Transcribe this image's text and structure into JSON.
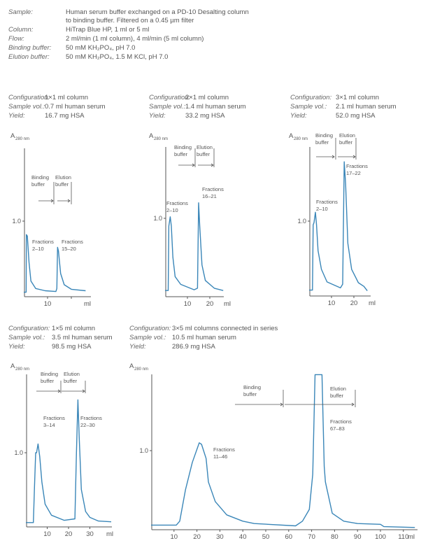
{
  "conditions": [
    {
      "label": "Sample:",
      "value": "Human serum buffer exchanged on a PD-10 Desalting column",
      "value2": "to binding buffer. Filtered on a 0.45 µm filter"
    },
    {
      "label": "Column:",
      "value": "HiTrap Blue HP, 1 ml or 5 ml"
    },
    {
      "label": "Flow:",
      "value": "2 ml/min (1 ml column), 4 ml/min (5 ml column)"
    },
    {
      "label": "Binding buffer:",
      "value": "50 mM KH₂PO₄, pH 7.0"
    },
    {
      "label": "Elution buffer:",
      "value": "50 mM KH₂PO₄, 1.5 M KCl, pH 7.0"
    }
  ],
  "colors": {
    "trace": "#3a86b8",
    "axis": "#555555"
  },
  "chart_data": [
    {
      "type": "line",
      "configuration": "1×1 ml column",
      "sample_vol": "0.7 ml human serum",
      "yield": "16.7 mg HSA",
      "labels": {
        "config": "Configuration:",
        "sample": "Sample vol.:",
        "yield": "Yield:"
      },
      "ylabel": "A",
      "ylabel_sub": "280 nm",
      "xlabel": "ml",
      "yticks": [
        1.0
      ],
      "ytick_labels": [
        "1.0"
      ],
      "xticks": [
        10,
        20
      ],
      "xtick_labels": [
        "10",
        ""
      ],
      "annotations": {
        "binding": [
          "Binding",
          "buffer"
        ],
        "elution": [
          "Elution",
          "buffer"
        ],
        "peak1": [
          "Fractions",
          "2–10"
        ],
        "peak2": [
          "Fractions",
          "15–20"
        ]
      },
      "points": [
        [
          0,
          0.05
        ],
        [
          1.0,
          0.05
        ],
        [
          1.1,
          0.82
        ],
        [
          1.5,
          0.8
        ],
        [
          2.2,
          0.45
        ],
        [
          3,
          0.2
        ],
        [
          5,
          0.1
        ],
        [
          9,
          0.07
        ],
        [
          13.5,
          0.06
        ],
        [
          13.9,
          0.1
        ],
        [
          14.2,
          0.65
        ],
        [
          14.6,
          0.6
        ],
        [
          15.5,
          0.3
        ],
        [
          17,
          0.15
        ],
        [
          20,
          0.09
        ],
        [
          26,
          0.07
        ]
      ]
    },
    {
      "type": "line",
      "configuration": "2×1 ml column",
      "sample_vol": "1.4 ml human serum",
      "yield": "33.2 mg HSA",
      "labels": {
        "config": "Configuration:",
        "sample": "Sample vol.:",
        "yield": "Yield:"
      },
      "ylabel": "A",
      "ylabel_sub": "280 nm",
      "xlabel": "ml",
      "yticks": [
        1.0
      ],
      "ytick_labels": [
        "1.0"
      ],
      "xticks": [
        10,
        20
      ],
      "xtick_labels": [
        "10",
        "20"
      ],
      "annotations": {
        "binding": [
          "Binding",
          "buffer"
        ],
        "elution": [
          "Elution",
          "buffer"
        ],
        "peak1": [
          "Fractions",
          "2–10"
        ],
        "peak2": [
          "Fractions",
          "16–21"
        ]
      },
      "points": [
        [
          0,
          0.07
        ],
        [
          1.4,
          0.07
        ],
        [
          1.7,
          0.9
        ],
        [
          2.3,
          1.02
        ],
        [
          2.8,
          0.9
        ],
        [
          3.5,
          0.5
        ],
        [
          4.5,
          0.25
        ],
        [
          7,
          0.15
        ],
        [
          13,
          0.08
        ],
        [
          14.5,
          0.1
        ],
        [
          15,
          1.2
        ],
        [
          15.5,
          0.9
        ],
        [
          16.5,
          0.4
        ],
        [
          18,
          0.2
        ],
        [
          22,
          0.1
        ],
        [
          26,
          0.07
        ]
      ]
    },
    {
      "type": "line",
      "configuration": "3×1 ml column",
      "sample_vol": "2.1 ml human serum",
      "yield": "52.0 mg HSA",
      "labels": {
        "config": "Configuration:",
        "sample": "Sample vol.:",
        "yield": "Yield:"
      },
      "ylabel": "A",
      "ylabel_sub": "280 nm",
      "xlabel": "ml",
      "yticks": [
        1.0
      ],
      "ytick_labels": [
        "1.0"
      ],
      "xticks": [
        10,
        20
      ],
      "xtick_labels": [
        "10",
        "20"
      ],
      "annotations": {
        "binding": [
          "Binding",
          "buffer"
        ],
        "elution": [
          "Elution",
          "buffer"
        ],
        "peak1": [
          "Fractions",
          "2–10"
        ],
        "peak2": [
          "Fractions",
          "17–22"
        ]
      },
      "points": [
        [
          0,
          0.07
        ],
        [
          1.5,
          0.07
        ],
        [
          1.8,
          0.95
        ],
        [
          2.2,
          0.98
        ],
        [
          2.8,
          1.12
        ],
        [
          3.3,
          0.95
        ],
        [
          4,
          0.6
        ],
        [
          5.5,
          0.35
        ],
        [
          8,
          0.18
        ],
        [
          14,
          0.1
        ],
        [
          15,
          0.15
        ],
        [
          15.7,
          1.8
        ],
        [
          16.3,
          1.5
        ],
        [
          17.3,
          0.7
        ],
        [
          19,
          0.35
        ],
        [
          22,
          0.17
        ],
        [
          24.5,
          0.12
        ],
        [
          26,
          0.06
        ]
      ]
    },
    {
      "type": "line",
      "configuration": "1×5 ml column",
      "sample_vol": "3.5 ml human serum",
      "yield": "98.5 mg HSA",
      "labels": {
        "config": "Configuration:",
        "sample": "Sample vol.:",
        "yield": "Yield:"
      },
      "ylabel": "A",
      "ylabel_sub": "280 nm",
      "xlabel": "ml",
      "yticks": [
        1.0
      ],
      "ytick_labels": [
        "1.0"
      ],
      "xticks": [
        10,
        20,
        30
      ],
      "xtick_labels": [
        "10",
        "20",
        "30"
      ],
      "annotations": {
        "binding": [
          "Binding",
          "buffer"
        ],
        "elution": [
          "Elution",
          "buffer"
        ],
        "peak1": [
          "Fractions",
          "3–14"
        ],
        "peak2": [
          "Fractions",
          "22–30"
        ]
      },
      "points": [
        [
          0,
          0.05
        ],
        [
          3.5,
          0.05
        ],
        [
          4,
          0.5
        ],
        [
          4.6,
          1.0
        ],
        [
          5,
          1.0
        ],
        [
          5.7,
          1.12
        ],
        [
          6.5,
          0.95
        ],
        [
          7.5,
          0.6
        ],
        [
          9,
          0.3
        ],
        [
          12,
          0.15
        ],
        [
          18,
          0.08
        ],
        [
          23,
          0.1
        ],
        [
          23.7,
          1.0
        ],
        [
          24.4,
          1.72
        ],
        [
          25,
          1.2
        ],
        [
          26,
          0.5
        ],
        [
          28,
          0.2
        ],
        [
          30,
          0.12
        ],
        [
          34,
          0.07
        ],
        [
          40,
          0.06
        ]
      ]
    },
    {
      "type": "line",
      "configuration": "3×5 ml columns connected in series",
      "sample_vol": "10.5 ml human serum",
      "yield": "286.9 mg HSA",
      "labels": {
        "config": "Configuration:",
        "sample": "Sample vol.:",
        "yield": "Yield:"
      },
      "ylabel": "A",
      "ylabel_sub": "280 nm",
      "xlabel": "ml",
      "yticks": [
        1.0
      ],
      "ytick_labels": [
        "1.0"
      ],
      "xticks": [
        10,
        20,
        30,
        40,
        50,
        60,
        70,
        80,
        90,
        100,
        110
      ],
      "xtick_labels": [
        "10",
        "20",
        "30",
        "40",
        "50",
        "60",
        "70",
        "80",
        "90",
        "100",
        "110"
      ],
      "annotations": {
        "binding": [
          "Binding",
          "buffer"
        ],
        "elution": [
          "Elution",
          "buffer"
        ],
        "peak1": [
          "Fractions",
          "11–46"
        ],
        "peak2": [
          "Fractions",
          "67–83"
        ]
      },
      "points": [
        [
          0,
          0.05
        ],
        [
          11,
          0.05
        ],
        [
          12.5,
          0.1
        ],
        [
          15,
          0.5
        ],
        [
          18,
          0.85
        ],
        [
          21,
          1.1
        ],
        [
          22,
          1.08
        ],
        [
          24,
          0.9
        ],
        [
          25,
          0.6
        ],
        [
          28,
          0.35
        ],
        [
          33,
          0.18
        ],
        [
          40,
          0.1
        ],
        [
          45,
          0.07
        ],
        [
          63,
          0.04
        ],
        [
          66,
          0.1
        ],
        [
          69,
          0.25
        ],
        [
          70.5,
          0.7
        ],
        [
          71.5,
          1.97
        ],
        [
          74.5,
          1.97
        ],
        [
          75.5,
          0.8
        ],
        [
          76,
          0.6
        ],
        [
          79,
          0.2
        ],
        [
          84,
          0.1
        ],
        [
          90,
          0.07
        ],
        [
          100,
          0.06
        ],
        [
          101.5,
          0.03
        ],
        [
          115,
          0.02
        ]
      ]
    }
  ]
}
